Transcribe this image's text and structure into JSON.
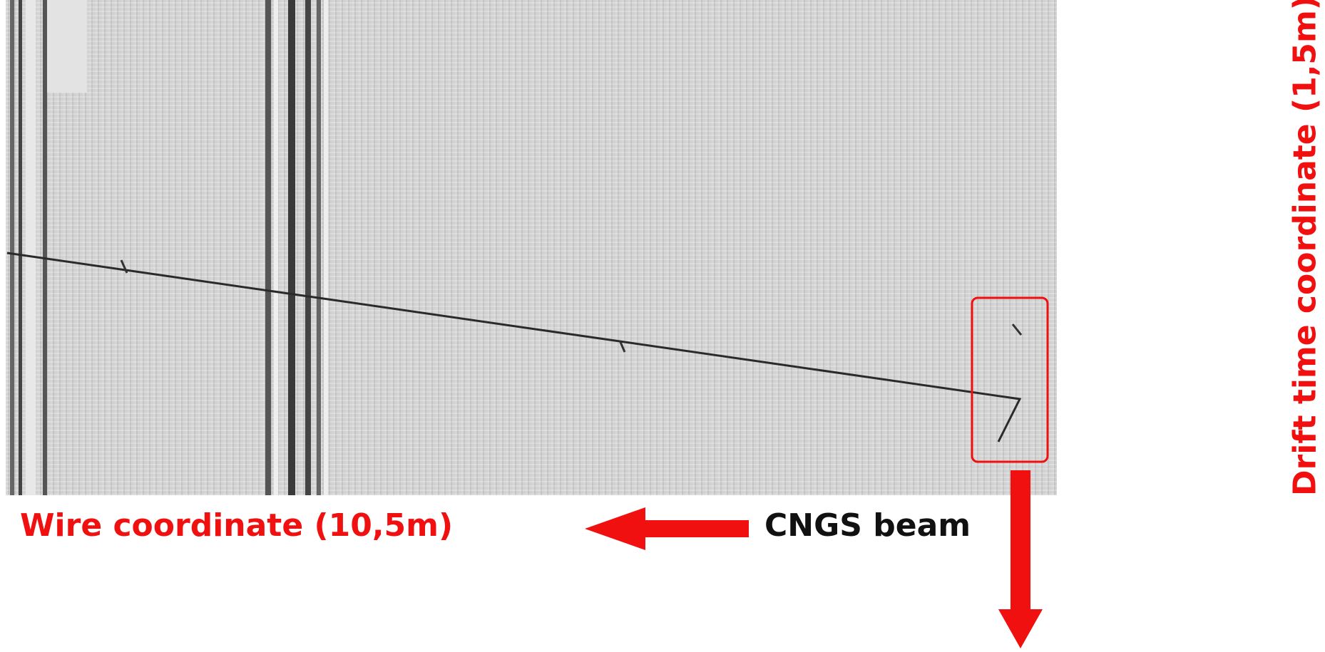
{
  "annotations": {
    "x_axis": "Wire coordinate (10,5m)",
    "beam": "CNGS beam",
    "y_axis": "Drift time coordinate (1,5m)"
  }
}
